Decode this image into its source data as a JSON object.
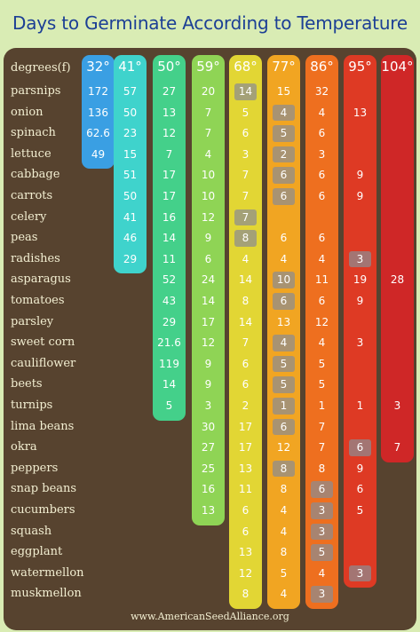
{
  "title": "Days to Germinate According to Temperature",
  "header_label": "degrees(f)",
  "footer": "www.AmericanSeedAlliance.org",
  "columns": [
    {
      "temp": "32°",
      "color": "#3a9fe3"
    },
    {
      "temp": "41°",
      "color": "#3fd3cc"
    },
    {
      "temp": "50°",
      "color": "#44d08a"
    },
    {
      "temp": "59°",
      "color": "#8fd455"
    },
    {
      "temp": "68°",
      "color": "#e2d634"
    },
    {
      "temp": "77°",
      "color": "#f1a522"
    },
    {
      "temp": "86°",
      "color": "#ee6f1f"
    },
    {
      "temp": "95°",
      "color": "#de3a24"
    },
    {
      "temp": "104°",
      "color": "#cf2727"
    }
  ],
  "rows": [
    {
      "name": "parsnips",
      "v": [
        "172",
        "57",
        "27",
        "20",
        "14",
        "15",
        "32",
        "",
        ""
      ]
    },
    {
      "name": "onion",
      "v": [
        "136",
        "50",
        "13",
        "7",
        "5",
        "4",
        "4",
        "13",
        ""
      ]
    },
    {
      "name": "spinach",
      "v": [
        "62.6",
        "23",
        "12",
        "7",
        "6",
        "5",
        "6",
        "",
        ""
      ]
    },
    {
      "name": "lettuce",
      "v": [
        "49",
        "15",
        "7",
        "4",
        "3",
        "2",
        "3",
        "",
        ""
      ]
    },
    {
      "name": "cabbage",
      "v": [
        "",
        "51",
        "17",
        "10",
        "7",
        "6",
        "6",
        "9",
        ""
      ]
    },
    {
      "name": "carrots",
      "v": [
        "",
        "50",
        "17",
        "10",
        "7",
        "6",
        "6",
        "9",
        ""
      ]
    },
    {
      "name": "celery",
      "v": [
        "",
        "41",
        "16",
        "12",
        "7",
        "",
        "",
        "",
        ""
      ]
    },
    {
      "name": "peas",
      "v": [
        "",
        "46",
        "14",
        "9",
        "8",
        "6",
        "6",
        "",
        ""
      ]
    },
    {
      "name": "radishes",
      "v": [
        "",
        "29",
        "11",
        "6",
        "4",
        "4",
        "4",
        "3",
        ""
      ]
    },
    {
      "name": "asparagus",
      "v": [
        "",
        "",
        "52",
        "24",
        "14",
        "10",
        "11",
        "19",
        "28"
      ]
    },
    {
      "name": "tomatoes",
      "v": [
        "",
        "",
        "43",
        "14",
        "8",
        "6",
        "6",
        "9",
        ""
      ]
    },
    {
      "name": "parsley",
      "v": [
        "",
        "",
        "29",
        "17",
        "14",
        "13",
        "12",
        "",
        ""
      ]
    },
    {
      "name": "sweet corn",
      "v": [
        "",
        "",
        "21.6",
        "12",
        "7",
        "4",
        "4",
        "3",
        ""
      ]
    },
    {
      "name": "cauliflower",
      "v": [
        "",
        "",
        "119",
        "9",
        "6",
        "5",
        "5",
        "",
        ""
      ]
    },
    {
      "name": "beets",
      "v": [
        "",
        "",
        "14",
        "9",
        "6",
        "5",
        "5",
        "",
        ""
      ]
    },
    {
      "name": "turnips",
      "v": [
        "",
        "",
        "5",
        "3",
        "2",
        "1",
        "1",
        "1",
        "3"
      ]
    },
    {
      "name": "lima beans",
      "v": [
        "",
        "",
        "",
        "30",
        "17",
        "6",
        "7",
        "",
        ""
      ]
    },
    {
      "name": "okra",
      "v": [
        "",
        "",
        "",
        "27",
        "17",
        "12",
        "7",
        "6",
        "7"
      ]
    },
    {
      "name": "peppers",
      "v": [
        "",
        "",
        "",
        "25",
        "13",
        "8",
        "8",
        "9",
        ""
      ]
    },
    {
      "name": "snap beans",
      "v": [
        "",
        "",
        "",
        "16",
        "11",
        "8",
        "6",
        "6",
        ""
      ]
    },
    {
      "name": "cucumbers",
      "v": [
        "",
        "",
        "",
        "13",
        "6",
        "4",
        "3",
        "5",
        ""
      ]
    },
    {
      "name": "squash",
      "v": [
        "",
        "",
        "",
        "",
        "6",
        "4",
        "3",
        "",
        ""
      ]
    },
    {
      "name": "eggplant",
      "v": [
        "",
        "",
        "",
        "",
        "13",
        "8",
        "5",
        "",
        ""
      ]
    },
    {
      "name": "watermellon",
      "v": [
        "",
        "",
        "",
        "",
        "12",
        "5",
        "4",
        "3",
        ""
      ]
    },
    {
      "name": "muskmellon",
      "v": [
        "",
        "",
        "",
        "",
        "8",
        "4",
        "3",
        "",
        ""
      ]
    }
  ]
}
